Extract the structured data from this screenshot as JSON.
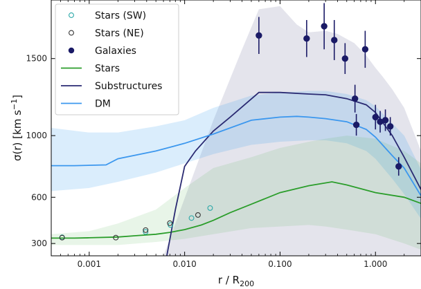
{
  "chart_data": {
    "type": "line",
    "xlabel": "r / R",
    "xlabel_sub": "200",
    "ylabel": "σ(r)   [km s",
    "ylabel_sup": "−1",
    "ylabel_close": "]",
    "x_scale": "log",
    "xlim": [
      0.0004,
      3.0
    ],
    "ylim": [
      220,
      1880
    ],
    "x_ticks": [
      {
        "value": 0.001,
        "label": "0.001"
      },
      {
        "value": 0.01,
        "label": "0.010"
      },
      {
        "value": 0.1,
        "label": "0.100"
      },
      {
        "value": 1.0,
        "label": "1.000"
      }
    ],
    "y_ticks": [
      {
        "value": 300,
        "label": "300"
      },
      {
        "value": 600,
        "label": "600"
      },
      {
        "value": 1000,
        "label": "1000"
      },
      {
        "value": 1500,
        "label": "1500"
      }
    ],
    "grid": false,
    "legend_position": "top-left",
    "bands": [
      {
        "name": "Substructures",
        "color": "#2e2e6e",
        "opacity": 0.13,
        "x": [
          0.006,
          0.02,
          0.04,
          0.06,
          0.1,
          0.15,
          0.2,
          0.3,
          0.4,
          0.6,
          0.8,
          1.0,
          1.2,
          1.5,
          2.0,
          3.0
        ],
        "upper": [
          220,
          1100,
          1560,
          1820,
          1840,
          1720,
          1670,
          1680,
          1660,
          1600,
          1520,
          1440,
          1380,
          1300,
          1180,
          900
        ],
        "lower": [
          220,
          220,
          220,
          220,
          220,
          220,
          220,
          220,
          220,
          220,
          220,
          220,
          220,
          220,
          220,
          220
        ]
      },
      {
        "name": "DM",
        "color": "#3399ee",
        "opacity": 0.18,
        "x": [
          0.0004,
          0.001,
          0.002,
          0.005,
          0.01,
          0.02,
          0.05,
          0.1,
          0.2,
          0.3,
          0.5,
          0.8,
          1.0,
          1.5,
          2.0,
          3.0
        ],
        "upper": [
          1050,
          1020,
          1020,
          1060,
          1100,
          1180,
          1260,
          1280,
          1290,
          1290,
          1270,
          1230,
          1190,
          1080,
          1000,
          780
        ],
        "lower": [
          640,
          660,
          700,
          760,
          820,
          880,
          940,
          960,
          970,
          970,
          950,
          900,
          850,
          720,
          620,
          460
        ]
      },
      {
        "name": "Stars",
        "color": "#4caf50",
        "opacity": 0.13,
        "x": [
          0.0004,
          0.001,
          0.002,
          0.005,
          0.01,
          0.02,
          0.05,
          0.1,
          0.2,
          0.3,
          0.5,
          1.0,
          2.0,
          3.0
        ],
        "upper": [
          360,
          380,
          430,
          520,
          660,
          790,
          860,
          920,
          960,
          980,
          1000,
          980,
          900,
          820
        ],
        "lower": [
          290,
          290,
          290,
          310,
          330,
          360,
          400,
          410,
          420,
          410,
          390,
          360,
          300,
          260
        ]
      }
    ],
    "series": [
      {
        "name": "Stars",
        "color": "#2a9d2a",
        "x": [
          0.0004,
          0.0007,
          0.001,
          0.002,
          0.003,
          0.005,
          0.007,
          0.01,
          0.015,
          0.02,
          0.03,
          0.05,
          0.1,
          0.2,
          0.35,
          0.5,
          1.0,
          2.0,
          3.0
        ],
        "y": [
          335,
          335,
          337,
          342,
          350,
          360,
          372,
          390,
          420,
          450,
          500,
          555,
          630,
          675,
          700,
          680,
          630,
          600,
          560
        ]
      },
      {
        "name": "Substructures",
        "color": "#2a2a72",
        "x": [
          0.0065,
          0.008,
          0.01,
          0.013,
          0.02,
          0.03,
          0.06,
          0.1,
          0.2,
          0.3,
          0.5,
          0.8,
          1.0,
          1.5,
          2.0,
          3.0
        ],
        "y": [
          220,
          520,
          800,
          900,
          1030,
          1120,
          1280,
          1280,
          1270,
          1265,
          1240,
          1200,
          1150,
          1000,
          860,
          650
        ]
      },
      {
        "name": "DM",
        "color": "#3b97ee",
        "x": [
          0.0004,
          0.0007,
          0.0015,
          0.002,
          0.005,
          0.01,
          0.02,
          0.05,
          0.1,
          0.15,
          0.2,
          0.3,
          0.5,
          0.8,
          1.0,
          1.5,
          2.0,
          3.0
        ],
        "y": [
          805,
          805,
          810,
          850,
          900,
          950,
          1010,
          1100,
          1120,
          1125,
          1120,
          1110,
          1090,
          1040,
          990,
          870,
          790,
          610
        ]
      }
    ],
    "points": [
      {
        "name": "Stars (SW)",
        "marker": "open-circle",
        "color": "#2aa7a7",
        "x": [
          0.00052,
          0.0039,
          0.0071,
          0.0118,
          0.0185
        ],
        "y": [
          340,
          375,
          420,
          465,
          530
        ]
      },
      {
        "name": "Stars (NE)",
        "marker": "open-circle",
        "color": "#333333",
        "x": [
          0.00052,
          0.0019,
          0.0039,
          0.007,
          0.0138
        ],
        "y": [
          338,
          338,
          387,
          432,
          485
        ]
      },
      {
        "name": "Galaxies",
        "marker": "filled-circle",
        "color": "#1a1a66",
        "x": [
          0.06,
          0.19,
          0.29,
          0.37,
          0.48,
          0.61,
          0.78,
          0.63,
          1.0,
          1.12,
          1.27,
          1.43,
          1.75
        ],
        "y": [
          1650,
          1630,
          1710,
          1620,
          1500,
          1240,
          1560,
          1070,
          1120,
          1090,
          1100,
          1060,
          800
        ],
        "err": [
          120,
          120,
          150,
          130,
          100,
          90,
          120,
          70,
          80,
          70,
          70,
          60,
          60
        ]
      }
    ],
    "legend": [
      {
        "label": "Stars (SW)",
        "kind": "open-circle",
        "color": "#2aa7a7"
      },
      {
        "label": "Stars (NE)",
        "kind": "open-circle",
        "color": "#333333"
      },
      {
        "label": "Galaxies",
        "kind": "filled-circle",
        "color": "#1a1a66"
      },
      {
        "label": "Stars",
        "kind": "line",
        "color": "#2a9d2a"
      },
      {
        "label": "Substructures",
        "kind": "line",
        "color": "#2a2a72"
      },
      {
        "label": "DM",
        "kind": "line",
        "color": "#3b97ee"
      }
    ]
  }
}
